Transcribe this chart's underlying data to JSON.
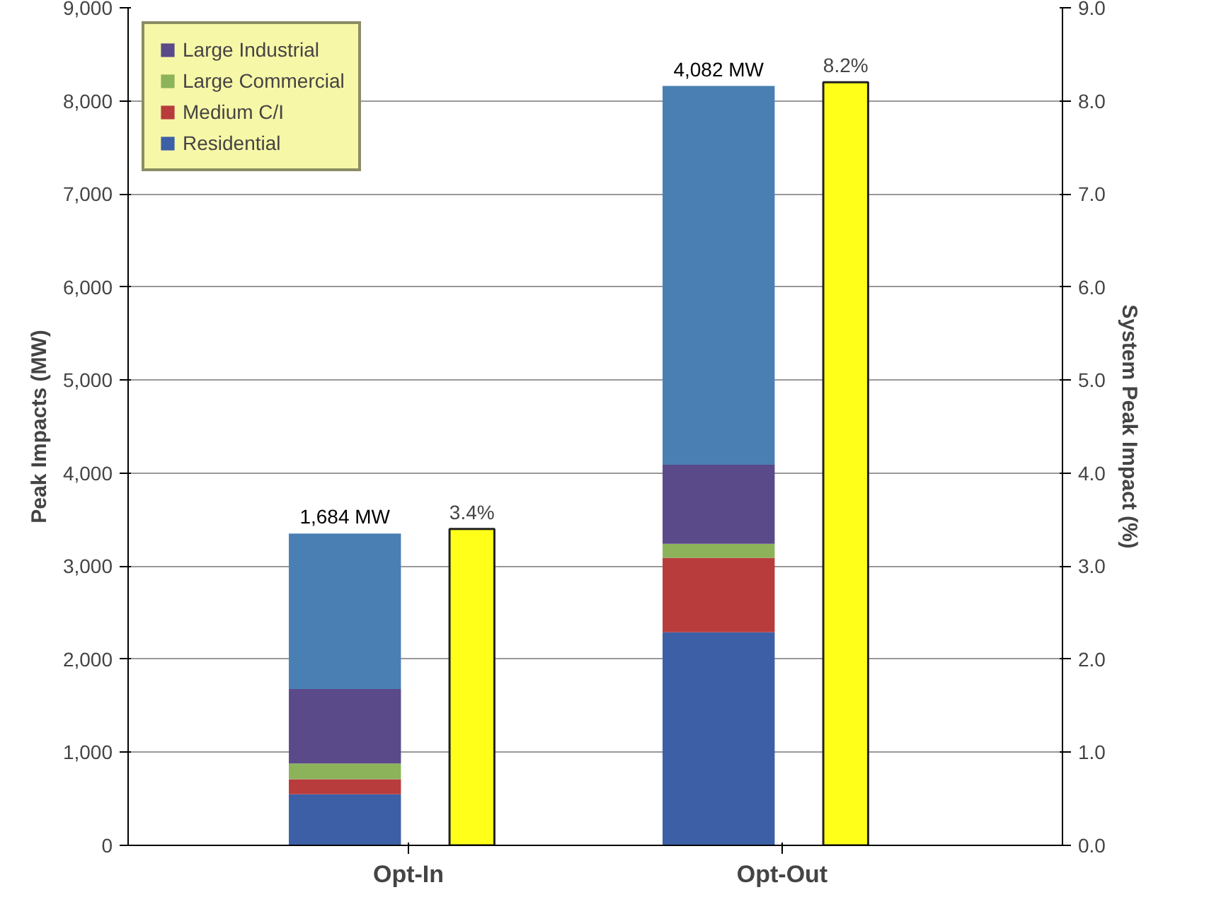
{
  "chart_data": {
    "type": "bar",
    "stacked": true,
    "categories": [
      "Opt-In",
      "Opt-Out"
    ],
    "series": [
      {
        "name": "Residential",
        "color": "#3d5fa6",
        "values": [
          550,
          2290
        ]
      },
      {
        "name": "Medium C/I",
        "color": "#b83c3c",
        "values": [
          160,
          800
        ]
      },
      {
        "name": "Large Commercial",
        "color": "#8db35a",
        "values": [
          170,
          150
        ]
      },
      {
        "name": "Large Industrial",
        "color": "#5a4a8a",
        "values": [
          800,
          850
        ]
      },
      {
        "color": "#4a7fb3",
        "values": [
          1670,
          4070
        ]
      },
      {
        "type": "bar",
        "axis": "y2",
        "color": "#ffff1a",
        "values": [
          3.4,
          8.2
        ],
        "value_labels": [
          "3.4%",
          "8.2%"
        ]
      }
    ],
    "annotations": [
      "1,684 MW",
      "4,082 MW"
    ],
    "ylabel": "Peak Impacts (MW)",
    "y2label": "System Peak Impact (%)",
    "ylim": [
      0,
      9000
    ],
    "yticks": [
      {
        "value": 0,
        "label": "0"
      },
      {
        "value": 1000,
        "label": "1,000"
      },
      {
        "value": 2000,
        "label": "2,000"
      },
      {
        "value": 3000,
        "label": "3,000"
      },
      {
        "value": 4000,
        "label": "4,000"
      },
      {
        "value": 5000,
        "label": "5,000"
      },
      {
        "value": 6000,
        "label": "6,000"
      },
      {
        "value": 7000,
        "label": "7,000"
      },
      {
        "value": 8000,
        "label": "8,000"
      },
      {
        "value": 9000,
        "label": "9,000"
      }
    ],
    "y2lim": [
      0,
      9
    ],
    "y2ticks": [
      {
        "value": 0,
        "label": "0.0"
      },
      {
        "value": 1,
        "label": "1.0"
      },
      {
        "value": 2,
        "label": "2.0"
      },
      {
        "value": 3,
        "label": "3.0"
      },
      {
        "value": 4,
        "label": "4.0"
      },
      {
        "value": 5,
        "label": "5.0"
      },
      {
        "value": 6,
        "label": "6.0"
      },
      {
        "value": 7,
        "label": "7.0"
      },
      {
        "value": 8,
        "label": "8.0"
      },
      {
        "value": 9,
        "label": "9.0"
      }
    ],
    "grid": "y",
    "legend": "top left"
  }
}
